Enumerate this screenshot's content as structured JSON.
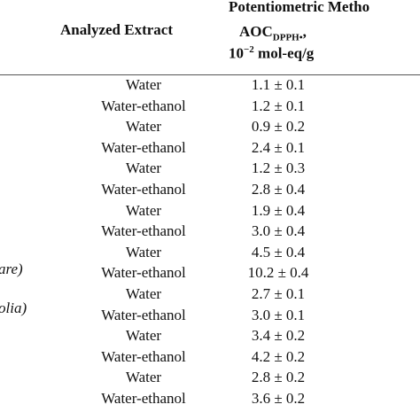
{
  "table": {
    "header": {
      "method": "Potentiometric Metho",
      "extract": "Analyzed Extract",
      "aoc": "AOC",
      "aoc_sub": "DPPH•",
      "aoc_comma": ",",
      "unit_base": "10",
      "unit_exp": "−2",
      "unit_rest": " mol-eq/g"
    },
    "side_labels": [
      "are)",
      "olia)"
    ],
    "rows": [
      [
        "Water",
        "1.1 ± 0.1"
      ],
      [
        "Water-ethanol",
        "1.2 ± 0.1"
      ],
      [
        "Water",
        "0.9 ± 0.2"
      ],
      [
        "Water-ethanol",
        "2.4 ± 0.1"
      ],
      [
        "Water",
        "1.2 ± 0.3"
      ],
      [
        "Water-ethanol",
        "2.8 ± 0.4"
      ],
      [
        "Water",
        "1.9 ± 0.4"
      ],
      [
        "Water-ethanol",
        "3.0 ± 0.4"
      ],
      [
        "Water",
        "4.5 ± 0.4"
      ],
      [
        "Water-ethanol",
        "10.2 ± 0.4"
      ],
      [
        "Water",
        "2.7 ± 0.1"
      ],
      [
        "Water-ethanol",
        "3.0 ± 0.1"
      ],
      [
        "Water",
        "3.4 ± 0.2"
      ],
      [
        "Water-ethanol",
        "4.2 ± 0.2"
      ],
      [
        "Water",
        "2.8 ± 0.2"
      ],
      [
        "Water-ethanol",
        "3.6 ± 0.2"
      ]
    ]
  }
}
